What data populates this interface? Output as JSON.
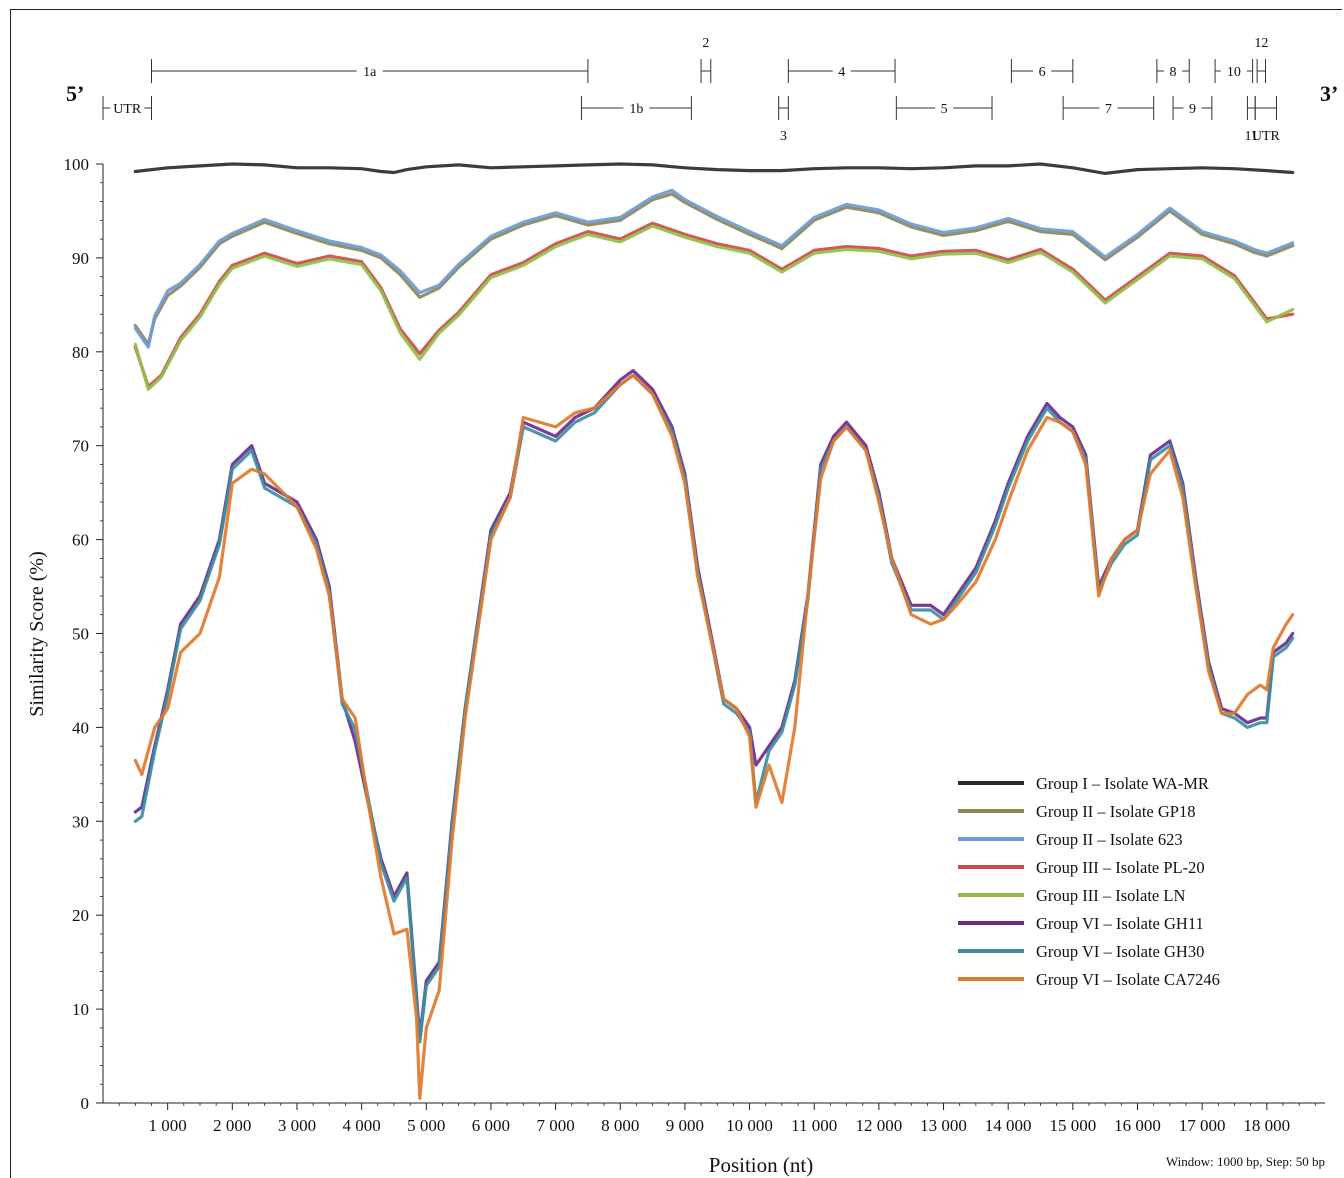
{
  "chart_data": {
    "type": "line",
    "xlabel": "Position (nt)",
    "ylabel": "Similarity Score (%)",
    "xlim": [
      0,
      18900
    ],
    "ylim": [
      0,
      100
    ],
    "x_ticks": [
      1000,
      2000,
      3000,
      4000,
      5000,
      6000,
      7000,
      8000,
      9000,
      10000,
      11000,
      12000,
      13000,
      14000,
      15000,
      16000,
      17000,
      18000
    ],
    "x_tick_labels": [
      "1 000",
      "2 000",
      "3 000",
      "4 000",
      "5 000",
      "6 000",
      "7 000",
      "8 000",
      "9 000",
      "10 000",
      "11 000",
      "12 000",
      "13 000",
      "14 000",
      "15 000",
      "16 000",
      "17 000",
      "18 000"
    ],
    "y_ticks": [
      0,
      10,
      20,
      30,
      40,
      50,
      60,
      70,
      80,
      90,
      100
    ],
    "y_tick_labels": [
      "0",
      "10",
      "20",
      "30",
      "40",
      "50",
      "60",
      "70",
      "80",
      "90",
      "100"
    ],
    "legend_position": "bottom-right",
    "footnote": "Window: 1000 bp, Step: 50 bp",
    "end_labels": {
      "five_prime": "5’",
      "three_prime": "3’"
    },
    "genome_map": {
      "top_row": [
        {
          "label": "1a",
          "start": 750,
          "end": 7500
        },
        {
          "label": "2",
          "start": 9250,
          "end": 9400
        },
        {
          "label": "4",
          "start": 10600,
          "end": 12250
        },
        {
          "label": "6",
          "start": 14050,
          "end": 15000
        },
        {
          "label": "8",
          "start": 16300,
          "end": 16800
        },
        {
          "label": "10",
          "start": 17200,
          "end": 17780
        },
        {
          "label": "12",
          "start": 17850,
          "end": 17980
        }
      ],
      "bottom_row": [
        {
          "label": "UTR",
          "start": 0,
          "end": 750
        },
        {
          "label": "1b",
          "start": 7400,
          "end": 9100
        },
        {
          "label": "3",
          "start": 10450,
          "end": 10600
        },
        {
          "label": "5",
          "start": 12270,
          "end": 13750
        },
        {
          "label": "7",
          "start": 14850,
          "end": 16250
        },
        {
          "label": "9",
          "start": 16550,
          "end": 17150
        },
        {
          "label": "11",
          "start": 17700,
          "end": 17820
        },
        {
          "label": "UTR",
          "start": 17820,
          "end": 18150
        }
      ]
    },
    "series": [
      {
        "name": "Group I – Isolate WA-MR",
        "color": "#2b2b2b",
        "x": [
          500,
          1000,
          1500,
          2000,
          2500,
          3000,
          3500,
          4000,
          4300,
          4500,
          4700,
          5000,
          5500,
          6000,
          6500,
          7000,
          7500,
          8000,
          8500,
          9000,
          9500,
          10000,
          10500,
          11000,
          11500,
          12000,
          12500,
          13000,
          13500,
          14000,
          14500,
          15000,
          15500,
          16000,
          16500,
          17000,
          17500,
          18000,
          18400
        ],
        "y": [
          99.2,
          99.6,
          99.8,
          100,
          99.9,
          99.6,
          99.6,
          99.5,
          99.2,
          99.1,
          99.4,
          99.7,
          99.9,
          99.6,
          99.7,
          99.8,
          99.9,
          100,
          99.9,
          99.6,
          99.4,
          99.3,
          99.3,
          99.5,
          99.6,
          99.6,
          99.5,
          99.6,
          99.8,
          99.8,
          100,
          99.6,
          99.0,
          99.4,
          99.5,
          99.6,
          99.5,
          99.3,
          99.1
        ]
      },
      {
        "name": "Group II – Isolate GP18",
        "color": "#8d8656",
        "x": [
          500,
          700,
          800,
          1000,
          1200,
          1500,
          1800,
          2000,
          2500,
          3000,
          3500,
          4000,
          4300,
          4600,
          4900,
          5200,
          5500,
          6000,
          6500,
          7000,
          7500,
          8000,
          8500,
          8800,
          9000,
          9500,
          10000,
          10500,
          11000,
          11500,
          12000,
          12500,
          13000,
          13500,
          14000,
          14500,
          15000,
          15500,
          16000,
          16500,
          17000,
          17500,
          17800,
          18000,
          18400
        ],
        "y": [
          82.8,
          80.8,
          83.5,
          86,
          87,
          89,
          91.5,
          92.3,
          93.8,
          92.6,
          91.5,
          90.8,
          90,
          88.2,
          85.8,
          86.8,
          89,
          92,
          93.5,
          94.5,
          93.5,
          94,
          96.2,
          96.8,
          95.9,
          94.1,
          92.5,
          91,
          94,
          95.4,
          94.8,
          93.3,
          92.4,
          92.9,
          93.9,
          92.8,
          92.5,
          89.8,
          92.2,
          95.0,
          92.5,
          91.5,
          90.6,
          90.2,
          91.3
        ]
      },
      {
        "name": "Group II – Isolate 623",
        "color": "#6b9bd6",
        "x": [
          500,
          700,
          800,
          1000,
          1200,
          1500,
          1800,
          2000,
          2500,
          3000,
          3500,
          4000,
          4300,
          4600,
          4900,
          5200,
          5500,
          6000,
          6500,
          7000,
          7500,
          8000,
          8500,
          8800,
          9000,
          9500,
          10000,
          10500,
          11000,
          11500,
          12000,
          12500,
          13000,
          13500,
          14000,
          14500,
          15000,
          15500,
          16000,
          16500,
          17000,
          17500,
          17800,
          18000,
          18400
        ],
        "y": [
          82.5,
          80.5,
          83.8,
          86.5,
          87.3,
          89.3,
          91.8,
          92.6,
          94.1,
          92.9,
          91.8,
          91.1,
          90.3,
          88.6,
          86.3,
          87.1,
          89.3,
          92.3,
          93.8,
          94.8,
          93.8,
          94.3,
          96.5,
          97.2,
          96.2,
          94.4,
          92.8,
          91.3,
          94.3,
          95.7,
          95.1,
          93.6,
          92.7,
          93.2,
          94.2,
          93.1,
          92.8,
          90.1,
          92.5,
          95.3,
          92.8,
          91.8,
          90.9,
          90.5,
          91.6
        ]
      },
      {
        "name": "Group III – Isolate PL-20",
        "color": "#cf4a4a",
        "x": [
          500,
          700,
          900,
          1200,
          1500,
          1800,
          2000,
          2500,
          3000,
          3500,
          4000,
          4300,
          4600,
          4900,
          5200,
          5500,
          6000,
          6500,
          7000,
          7500,
          8000,
          8500,
          9000,
          9500,
          10000,
          10500,
          11000,
          11500,
          12000,
          12500,
          13000,
          13500,
          14000,
          14500,
          15000,
          15500,
          16000,
          16500,
          17000,
          17500,
          18000,
          18400
        ],
        "y": [
          80.5,
          76.3,
          77.5,
          81.5,
          84,
          87.5,
          89.2,
          90.5,
          89.4,
          90.2,
          89.6,
          86.8,
          82.4,
          79.8,
          82.3,
          84.2,
          88.2,
          89.5,
          91.5,
          92.8,
          92,
          93.7,
          92.5,
          91.5,
          90.8,
          88.8,
          90.8,
          91.2,
          91,
          90.2,
          90.7,
          90.8,
          89.8,
          90.9,
          88.8,
          85.5,
          88.0,
          90.5,
          90.2,
          88.1,
          83.5,
          84.0
        ]
      },
      {
        "name": "Group III – Isolate LN",
        "color": "#8fbf4a",
        "x": [
          500,
          700,
          900,
          1200,
          1500,
          1800,
          2000,
          2500,
          3000,
          3500,
          4000,
          4300,
          4600,
          4900,
          5200,
          5500,
          6000,
          6500,
          7000,
          7500,
          8000,
          8500,
          9000,
          9500,
          10000,
          10500,
          11000,
          11500,
          12000,
          12500,
          13000,
          13500,
          14000,
          14500,
          15000,
          15500,
          16000,
          16500,
          17000,
          17500,
          18000,
          18400
        ],
        "y": [
          80.8,
          76.0,
          77.3,
          81.2,
          83.7,
          87.2,
          88.9,
          90.2,
          89.1,
          89.9,
          89.3,
          86.5,
          82.0,
          79.2,
          82.0,
          83.9,
          87.9,
          89.2,
          91.2,
          92.5,
          91.7,
          93.4,
          92.2,
          91.2,
          90.5,
          88.5,
          90.5,
          90.9,
          90.7,
          89.9,
          90.4,
          90.5,
          89.5,
          90.6,
          88.5,
          85.2,
          87.7,
          90.2,
          89.9,
          87.8,
          83.2,
          84.5
        ]
      },
      {
        "name": "Group VI – Isolate GH11",
        "color": "#6a2b8f",
        "x": [
          500,
          600,
          800,
          1000,
          1200,
          1500,
          1800,
          2000,
          2300,
          2500,
          3000,
          3300,
          3500,
          3700,
          3900,
          4100,
          4300,
          4500,
          4700,
          4900,
          5000,
          5200,
          5400,
          5600,
          6000,
          6300,
          6500,
          7000,
          7300,
          7600,
          8000,
          8200,
          8500,
          8800,
          9000,
          9200,
          9400,
          9600,
          9800,
          10000,
          10100,
          10300,
          10500,
          10700,
          10900,
          11100,
          11300,
          11500,
          11800,
          12000,
          12200,
          12500,
          12800,
          13000,
          13200,
          13500,
          13800,
          14000,
          14300,
          14600,
          14800,
          15000,
          15200,
          15400,
          15600,
          15800,
          16000,
          16200,
          16500,
          16700,
          16900,
          17100,
          17300,
          17500,
          17700,
          17900,
          18000,
          18100,
          18300,
          18400
        ],
        "y": [
          31,
          31.5,
          38,
          44,
          51,
          54,
          60,
          68,
          70,
          66,
          64,
          60,
          55,
          43,
          38.5,
          32,
          26,
          22,
          24.5,
          7,
          13,
          15,
          30,
          42,
          61,
          65,
          72.5,
          71,
          73,
          74,
          77,
          78,
          76,
          72,
          67,
          57,
          50,
          43,
          42,
          40,
          36,
          38,
          40,
          45,
          54,
          68,
          71,
          72.5,
          70,
          65,
          58,
          53,
          53,
          52,
          54,
          57,
          62,
          66,
          71,
          74.5,
          73,
          72,
          69,
          55,
          58,
          60,
          61,
          69,
          70.5,
          66,
          56,
          47,
          42,
          41.5,
          40.5,
          41,
          41,
          48,
          49,
          50
        ]
      },
      {
        "name": "Group VI – Isolate GH30",
        "color": "#3d8ea0",
        "x": [
          500,
          600,
          800,
          1000,
          1200,
          1500,
          1800,
          2000,
          2300,
          2500,
          3000,
          3300,
          3500,
          3700,
          3900,
          4100,
          4300,
          4500,
          4700,
          4900,
          5000,
          5200,
          5400,
          5600,
          6000,
          6300,
          6500,
          7000,
          7300,
          7600,
          8000,
          8200,
          8500,
          8800,
          9000,
          9200,
          9400,
          9600,
          9800,
          10000,
          10100,
          10300,
          10500,
          10700,
          10900,
          11100,
          11300,
          11500,
          11800,
          12000,
          12200,
          12500,
          12800,
          13000,
          13200,
          13500,
          13800,
          14000,
          14300,
          14600,
          14800,
          15000,
          15200,
          15400,
          15600,
          15800,
          16000,
          16200,
          16500,
          16700,
          16900,
          17100,
          17300,
          17500,
          17700,
          17900,
          18000,
          18100,
          18300,
          18400
        ],
        "y": [
          30,
          30.5,
          37.5,
          43.5,
          50.5,
          53.5,
          59.5,
          67.5,
          69.5,
          65.5,
          63.5,
          59.5,
          54.5,
          42.5,
          39.8,
          32.5,
          25.5,
          21.5,
          24,
          6.5,
          12.5,
          14.5,
          29.5,
          42,
          60.5,
          64.5,
          72,
          70.5,
          72.5,
          73.5,
          76.5,
          77.5,
          75.5,
          71.5,
          66.5,
          56.5,
          49.5,
          42.5,
          41.5,
          39.5,
          32,
          37.5,
          39.5,
          44.5,
          53.5,
          67.5,
          70.5,
          72,
          69.5,
          64.5,
          57.5,
          52.5,
          52.5,
          51.5,
          53.5,
          56.5,
          61.5,
          65.5,
          70.5,
          74,
          72.5,
          71.5,
          68.5,
          54.5,
          57.5,
          59.5,
          60.5,
          68.5,
          70,
          65.5,
          55.5,
          46.5,
          41.5,
          41,
          40,
          40.5,
          40.5,
          47.5,
          48.5,
          49.5
        ]
      },
      {
        "name": "Group VI – Isolate CA7246",
        "color": "#e07a2e",
        "x": [
          500,
          600,
          800,
          1000,
          1200,
          1500,
          1800,
          2000,
          2300,
          2500,
          3000,
          3300,
          3500,
          3700,
          3900,
          4100,
          4300,
          4500,
          4700,
          4850,
          4900,
          5000,
          5200,
          5400,
          5600,
          6000,
          6300,
          6500,
          7000,
          7300,
          7600,
          8000,
          8200,
          8500,
          8800,
          9000,
          9200,
          9400,
          9600,
          9800,
          10000,
          10100,
          10300,
          10500,
          10700,
          10900,
          11100,
          11300,
          11500,
          11800,
          12000,
          12200,
          12500,
          12800,
          13000,
          13200,
          13500,
          13800,
          14000,
          14300,
          14600,
          14800,
          15000,
          15200,
          15400,
          15600,
          15800,
          16000,
          16200,
          16500,
          16700,
          16900,
          17100,
          17300,
          17500,
          17700,
          17900,
          18000,
          18100,
          18300,
          18400
        ],
        "y": [
          36.5,
          35,
          40,
          42,
          48,
          50,
          56,
          66,
          67.5,
          67,
          63.5,
          59,
          54,
          43,
          41,
          32,
          24,
          18,
          18.5,
          9,
          0.5,
          8,
          12,
          28,
          41,
          60,
          64.5,
          73,
          72,
          73.5,
          74,
          76.5,
          77.5,
          75.5,
          71,
          66,
          56,
          49.5,
          43,
          42,
          39,
          31.5,
          36,
          32,
          40,
          54,
          66.5,
          70.5,
          72,
          69.5,
          64,
          58,
          52,
          51,
          51.5,
          53,
          55.5,
          60,
          64,
          69.5,
          73,
          72.5,
          71.5,
          68,
          54,
          58,
          60,
          61,
          67,
          69.5,
          64.5,
          55,
          46,
          41.5,
          41.5,
          43.5,
          44.5,
          44,
          48.5,
          51,
          52
        ]
      }
    ]
  }
}
